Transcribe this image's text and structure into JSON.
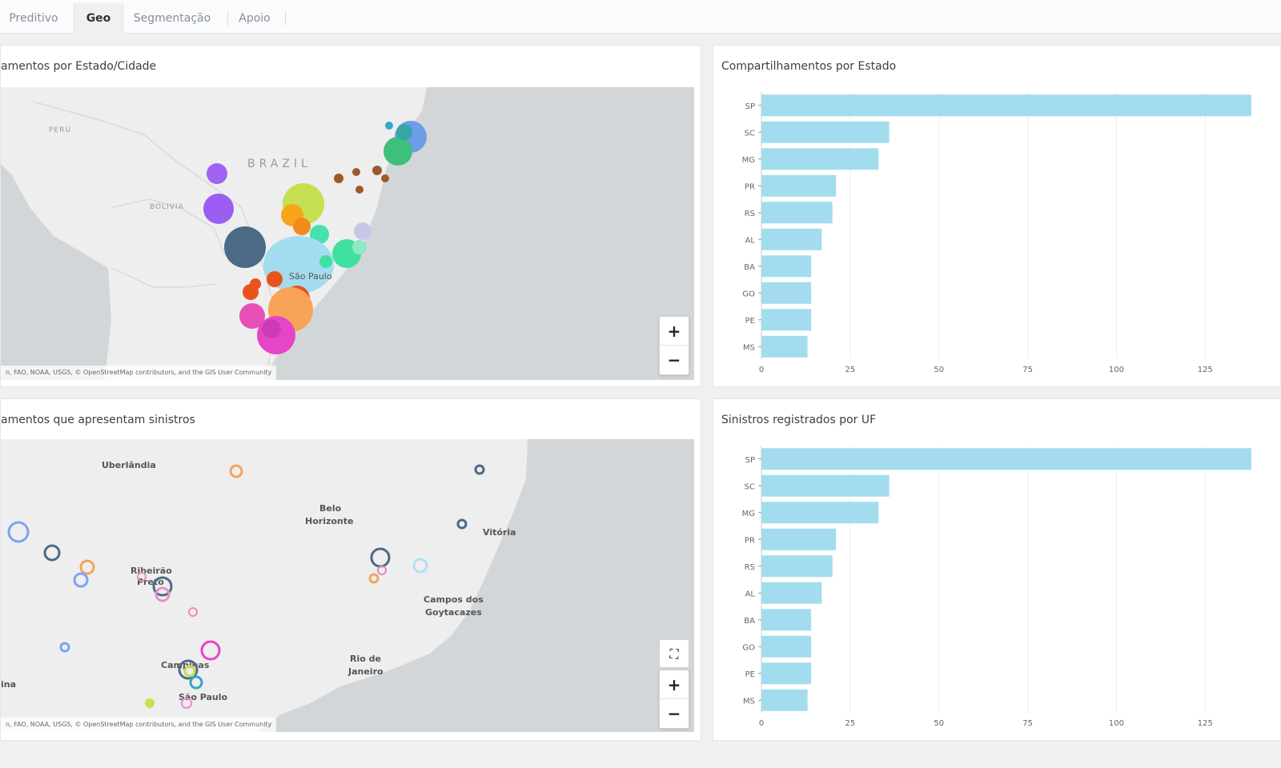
{
  "tabs": [
    {
      "label": "Preditivo",
      "active": false
    },
    {
      "label": "Geo",
      "active": true
    },
    {
      "label": "Segmentação",
      "active": false
    },
    {
      "label": "Apoio",
      "active": false
    }
  ],
  "panels": {
    "map1": {
      "title": "amentos por Estado/Cidade",
      "labels": {
        "country": "BRAZIL",
        "peru": "PERU",
        "bolivia": "BOLIVIA",
        "city": "São Paulo"
      },
      "attribution": "n, FAO, NOAA, USGS, © OpenStreetMap contributors, and the GIS User Community",
      "zoom_in": "+",
      "zoom_out": "−"
    },
    "map2": {
      "title": "amentos que apresentam sinistros",
      "labels": {
        "uberlandia": "Uberlândia",
        "belo1": "Belo",
        "belo2": "Horizonte",
        "vitoria": "Vitória",
        "ribeirao1": "Ribeirão",
        "ribeirao2": "Preto",
        "campos1": "Campos dos",
        "campos2": "Goytacazes",
        "rio1": "Rio de",
        "rio2": "Janeiro",
        "campinas": "Campinas",
        "saopaulo": "São Paulo",
        "ina": "ina"
      },
      "attribution": "n, FAO, NOAA, USGS, © OpenStreetMap contributors, and the GIS User Community",
      "fullscreen": "⛶",
      "zoom_in": "+",
      "zoom_out": "−"
    },
    "chart1": {
      "title": "Compartilhamentos por Estado"
    },
    "chart2": {
      "title": "Sinistros registrados por UF"
    }
  },
  "chart_data": [
    {
      "type": "bar",
      "orientation": "horizontal",
      "title": "Compartilhamentos por Estado",
      "categories": [
        "SP",
        "SC",
        "MG",
        "PR",
        "RS",
        "AL",
        "BA",
        "GO",
        "PE",
        "MS"
      ],
      "values": [
        138,
        36,
        33,
        21,
        20,
        17,
        14,
        14,
        14,
        13
      ],
      "xlim": [
        0,
        138
      ],
      "xticks": [
        0,
        25,
        50,
        75,
        100,
        125
      ],
      "color": "#a3dcef"
    },
    {
      "type": "bar",
      "orientation": "horizontal",
      "title": "Sinistros registrados por UF",
      "categories": [
        "SP",
        "SC",
        "MG",
        "PR",
        "RS",
        "AL",
        "BA",
        "GO",
        "PE",
        "MS"
      ],
      "values": [
        138,
        36,
        33,
        21,
        20,
        17,
        14,
        14,
        14,
        13
      ],
      "xlim": [
        0,
        138
      ],
      "xticks": [
        0,
        25,
        50,
        75,
        100,
        125
      ],
      "color": "#a3dcef"
    }
  ]
}
